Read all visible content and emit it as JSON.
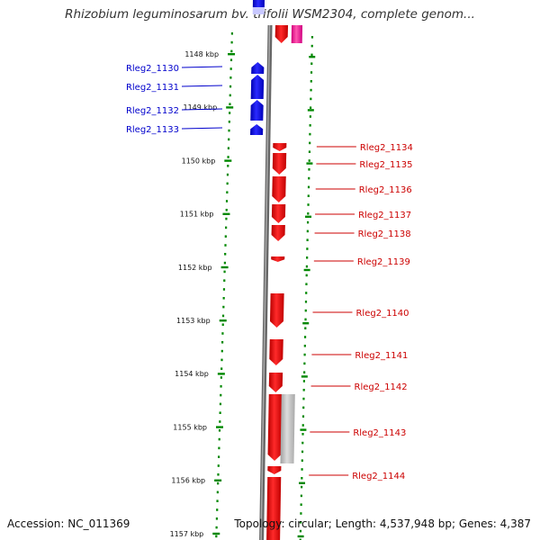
{
  "title": "Rhizobium leguminosarum bv. trifolii WSM2304, complete genom...",
  "footer": {
    "accession": "Accession: NC_011369",
    "topology": "Topology: circular; Length: 4,537,948 bp; Genes: 4,387"
  },
  "colors": {
    "minus_strand_gene": "#1f1fff",
    "plus_strand_gene": "#ff1a1a",
    "pseudo_gene": "#c8c8c8",
    "rna_gene": "#ff44aa",
    "backbone": "#8c8c8c",
    "tick": "#008800",
    "label_left": "#0000cc",
    "label_right": "#cc0000"
  },
  "scale_kbp": [
    1148,
    1149,
    1150,
    1151,
    1152,
    1153,
    1154,
    1155,
    1156,
    1157
  ],
  "scale_unit": "kbp",
  "genes_left": [
    "Rleg2_1130",
    "Rleg2_1131",
    "Rleg2_1132",
    "Rleg2_1133"
  ],
  "genes_right": [
    "Rleg2_1134",
    "Rleg2_1135",
    "Rleg2_1136",
    "Rleg2_1137",
    "Rleg2_1138",
    "Rleg2_1139",
    "Rleg2_1140",
    "Rleg2_1141",
    "Rleg2_1142",
    "Rleg2_1143",
    "Rleg2_1144"
  ]
}
